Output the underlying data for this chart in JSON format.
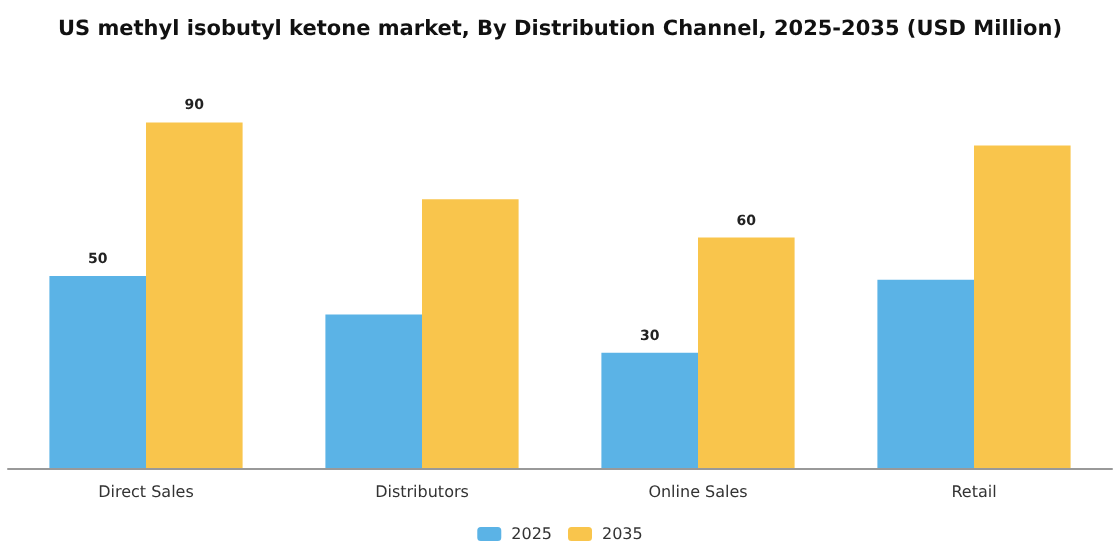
{
  "chart_data": {
    "type": "bar",
    "title": "US methyl isobutyl ketone market, By Distribution Channel, 2025-2035 (USD Million)",
    "categories": [
      "Direct Sales",
      "Distributors",
      "Online Sales",
      "Retail"
    ],
    "series": [
      {
        "name": "2025",
        "color": "#5bb3e6",
        "values": [
          50,
          40,
          30,
          49
        ],
        "value_labels": [
          "50",
          null,
          "30",
          null
        ]
      },
      {
        "name": "2035",
        "color": "#f9c54c",
        "values": [
          90,
          70,
          60,
          84
        ],
        "value_labels": [
          "90",
          null,
          "60",
          null
        ]
      }
    ],
    "legend": "bottom"
  }
}
